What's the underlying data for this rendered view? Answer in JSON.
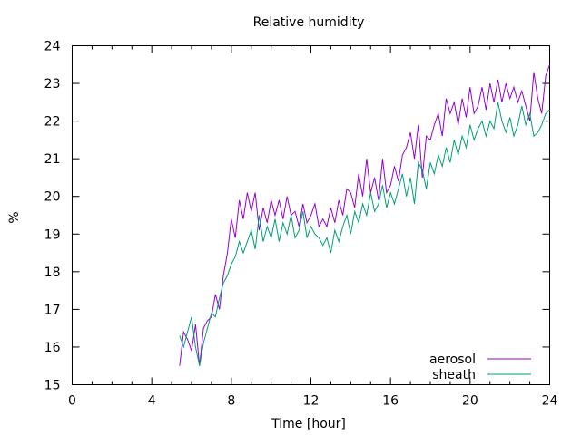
{
  "chart_data": {
    "type": "line",
    "title": "Relative humidity",
    "xlabel": "Time [hour]",
    "ylabel": "%",
    "xlim": [
      0,
      24
    ],
    "ylim": [
      15,
      24
    ],
    "xticks": [
      0,
      4,
      8,
      12,
      16,
      20,
      24
    ],
    "xticks_minor_step": 1,
    "yticks": [
      15,
      16,
      17,
      18,
      19,
      20,
      21,
      22,
      23,
      24
    ],
    "grid": false,
    "legend": "bottom-right",
    "series": [
      {
        "name": "aerosol",
        "color": "#9400d3",
        "x": [
          5.4,
          5.6,
          5.8,
          6.0,
          6.2,
          6.4,
          6.6,
          6.8,
          7.0,
          7.2,
          7.4,
          7.6,
          7.8,
          8.0,
          8.2,
          8.4,
          8.6,
          8.8,
          9.0,
          9.2,
          9.4,
          9.6,
          9.8,
          10.0,
          10.2,
          10.4,
          10.6,
          10.8,
          11.0,
          11.2,
          11.4,
          11.6,
          11.8,
          12.0,
          12.2,
          12.4,
          12.6,
          12.8,
          13.0,
          13.2,
          13.4,
          13.6,
          13.8,
          14.0,
          14.2,
          14.4,
          14.6,
          14.8,
          15.0,
          15.2,
          15.4,
          15.6,
          15.8,
          16.0,
          16.2,
          16.4,
          16.6,
          16.8,
          17.0,
          17.2,
          17.4,
          17.6,
          17.8,
          18.0,
          18.2,
          18.4,
          18.6,
          18.8,
          19.0,
          19.2,
          19.4,
          19.6,
          19.8,
          20.0,
          20.2,
          20.4,
          20.6,
          20.8,
          21.0,
          21.2,
          21.4,
          21.6,
          21.8,
          22.0,
          22.2,
          22.4,
          22.6,
          22.8,
          23.0,
          23.2,
          23.4,
          23.6,
          23.8,
          24.0
        ],
        "y": [
          15.5,
          16.4,
          16.2,
          15.9,
          16.6,
          15.5,
          16.5,
          16.7,
          16.8,
          17.4,
          17.0,
          17.9,
          18.5,
          19.4,
          18.9,
          19.9,
          19.4,
          20.1,
          19.6,
          20.1,
          19.1,
          19.7,
          19.3,
          19.9,
          19.5,
          19.9,
          19.4,
          20.0,
          19.5,
          19.6,
          19.2,
          19.8,
          19.3,
          19.5,
          19.8,
          19.2,
          19.4,
          19.2,
          19.7,
          19.3,
          19.9,
          19.5,
          20.2,
          20.1,
          19.7,
          20.6,
          20.0,
          21.0,
          20.1,
          20.5,
          19.9,
          21.0,
          20.1,
          20.3,
          20.8,
          20.4,
          21.1,
          21.3,
          21.7,
          21.0,
          21.9,
          20.5,
          21.6,
          21.5,
          21.9,
          22.2,
          21.6,
          22.6,
          22.2,
          22.5,
          21.9,
          22.6,
          22.1,
          22.9,
          22.2,
          22.4,
          22.9,
          22.3,
          23.0,
          22.5,
          23.1,
          22.5,
          23.0,
          22.6,
          22.9,
          22.5,
          22.8,
          22.4,
          22.0,
          23.3,
          22.6,
          22.2,
          23.2,
          23.5
        ]
      },
      {
        "name": "sheath",
        "color": "#009e73",
        "x": [
          5.4,
          5.6,
          5.8,
          6.0,
          6.2,
          6.4,
          6.6,
          6.8,
          7.0,
          7.2,
          7.4,
          7.6,
          7.8,
          8.0,
          8.2,
          8.4,
          8.6,
          8.8,
          9.0,
          9.2,
          9.4,
          9.6,
          9.8,
          10.0,
          10.2,
          10.4,
          10.6,
          10.8,
          11.0,
          11.2,
          11.4,
          11.6,
          11.8,
          12.0,
          12.2,
          12.4,
          12.6,
          12.8,
          13.0,
          13.2,
          13.4,
          13.6,
          13.8,
          14.0,
          14.2,
          14.4,
          14.6,
          14.8,
          15.0,
          15.2,
          15.4,
          15.6,
          15.8,
          16.0,
          16.2,
          16.4,
          16.6,
          16.8,
          17.0,
          17.2,
          17.4,
          17.6,
          17.8,
          18.0,
          18.2,
          18.4,
          18.6,
          18.8,
          19.0,
          19.2,
          19.4,
          19.6,
          19.8,
          20.0,
          20.2,
          20.4,
          20.6,
          20.8,
          21.0,
          21.2,
          21.4,
          21.6,
          21.8,
          22.0,
          22.2,
          22.4,
          22.6,
          22.8,
          23.0,
          23.2,
          23.4,
          23.6,
          23.8,
          24.0
        ],
        "y": [
          16.3,
          16.0,
          16.4,
          16.8,
          16.0,
          15.5,
          16.1,
          16.5,
          16.9,
          16.8,
          17.3,
          17.7,
          17.9,
          18.2,
          18.4,
          18.8,
          18.5,
          18.8,
          19.1,
          18.6,
          19.5,
          18.8,
          19.2,
          18.9,
          19.4,
          18.8,
          19.3,
          19.0,
          19.5,
          18.9,
          19.1,
          19.6,
          18.9,
          19.2,
          19.0,
          18.9,
          18.7,
          18.9,
          18.5,
          19.1,
          18.8,
          19.2,
          19.5,
          19.0,
          19.6,
          19.3,
          19.8,
          19.5,
          20.1,
          19.6,
          19.8,
          20.3,
          19.7,
          20.1,
          19.8,
          20.2,
          20.6,
          20.0,
          20.5,
          19.8,
          20.9,
          20.7,
          20.2,
          20.9,
          20.6,
          21.1,
          20.8,
          21.3,
          20.9,
          21.5,
          21.1,
          21.6,
          21.3,
          21.9,
          21.5,
          21.8,
          22.0,
          21.6,
          22.0,
          21.8,
          22.5,
          22.0,
          21.7,
          22.1,
          21.6,
          21.9,
          22.4,
          21.9,
          22.2,
          21.6,
          21.7,
          21.9,
          22.2,
          22.3
        ]
      }
    ]
  }
}
